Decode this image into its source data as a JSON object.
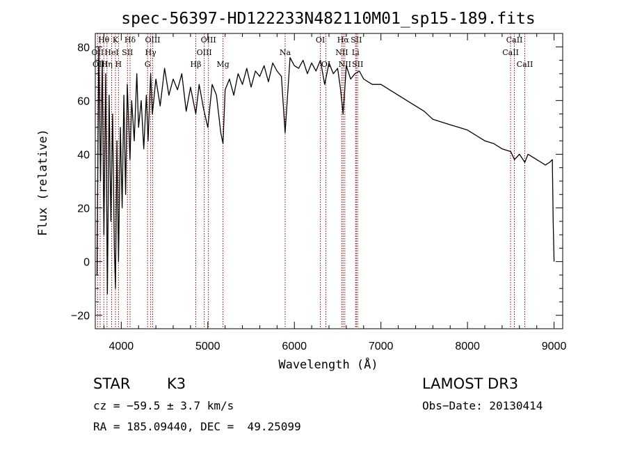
{
  "chart_data": {
    "type": "line",
    "title": "spec-56397-HD122233N482110M01_sp15-189.fits",
    "xlabel": "Wavelength (Å)",
    "ylabel": "Flux (relative)",
    "xlim": [
      3700,
      9100
    ],
    "ylim": [
      -25,
      85
    ],
    "xticks": [
      4000,
      5000,
      6000,
      7000,
      8000,
      9000
    ],
    "yticks": [
      -20,
      0,
      20,
      40,
      60,
      80
    ],
    "grid": false,
    "line_color": "#000000",
    "marker_color": "#8b0000",
    "series": [
      {
        "name": "flux",
        "x": [
          3720,
          3740,
          3760,
          3780,
          3800,
          3820,
          3840,
          3860,
          3880,
          3900,
          3920,
          3933,
          3950,
          3968,
          3990,
          4010,
          4030,
          4050,
          4070,
          4101,
          4120,
          4150,
          4180,
          4200,
          4230,
          4260,
          4290,
          4310,
          4340,
          4360,
          4400,
          4450,
          4500,
          4550,
          4600,
          4650,
          4700,
          4750,
          4800,
          4861,
          4900,
          4950,
          5000,
          5050,
          5100,
          5150,
          5175,
          5200,
          5250,
          5300,
          5350,
          5400,
          5450,
          5500,
          5550,
          5600,
          5650,
          5700,
          5750,
          5800,
          5850,
          5893,
          5950,
          6000,
          6050,
          6100,
          6150,
          6200,
          6250,
          6300,
          6350,
          6400,
          6450,
          6500,
          6530,
          6563,
          6600,
          6650,
          6700,
          6750,
          6800,
          6900,
          7000,
          7100,
          7200,
          7300,
          7400,
          7500,
          7600,
          7700,
          7800,
          7900,
          8000,
          8100,
          8200,
          8300,
          8400,
          8500,
          8542,
          8600,
          8662,
          8700,
          8750,
          8800,
          8850,
          8900,
          8950,
          8980,
          8990,
          9000
        ],
        "y": [
          -5,
          80,
          30,
          75,
          10,
          70,
          -12,
          62,
          15,
          55,
          5,
          -10,
          45,
          0,
          50,
          20,
          62,
          25,
          66,
          38,
          60,
          45,
          70,
          50,
          60,
          42,
          62,
          45,
          70,
          55,
          68,
          58,
          72,
          62,
          68,
          64,
          70,
          56,
          65,
          55,
          66,
          57,
          50,
          66,
          62,
          48,
          44,
          64,
          68,
          62,
          70,
          66,
          72,
          65,
          71,
          69,
          73,
          67,
          74,
          71,
          69,
          48,
          76,
          73,
          72,
          75,
          70,
          74,
          71,
          75,
          66,
          74,
          70,
          72,
          65,
          55,
          73,
          68,
          70,
          71,
          68,
          66,
          66,
          64,
          62,
          60,
          58,
          56,
          53,
          52,
          51,
          50,
          49,
          47,
          45,
          44,
          42,
          41,
          38,
          40,
          37,
          40,
          39,
          38,
          37,
          36,
          37,
          38,
          15,
          0
        ]
      }
    ],
    "line_markers": [
      {
        "label": "Hθ",
        "wavelength": 3798,
        "row": 0
      },
      {
        "label": "OII",
        "wavelength": 3727,
        "row": 1
      },
      {
        "label": "OIII",
        "wavelength": 3756,
        "row": 2
      },
      {
        "label": "K",
        "wavelength": 3933,
        "row": 0
      },
      {
        "label": "HeI",
        "wavelength": 3889,
        "row": 1
      },
      {
        "label": "Hη",
        "wavelength": 3835,
        "row": 2
      },
      {
        "label": "Hδ",
        "wavelength": 4102,
        "row": 0
      },
      {
        "label": "SII",
        "wavelength": 4072,
        "row": 1
      },
      {
        "label": "H",
        "wavelength": 3968,
        "row": 2
      },
      {
        "label": "OIII",
        "wavelength": 4363,
        "row": 0
      },
      {
        "label": "Hγ",
        "wavelength": 4340,
        "row": 1
      },
      {
        "label": "G",
        "wavelength": 4304,
        "row": 2
      },
      {
        "label": "OIII",
        "wavelength": 5007,
        "row": 0
      },
      {
        "label": "OIII",
        "wavelength": 4959,
        "row": 1
      },
      {
        "label": "Hβ",
        "wavelength": 4861,
        "row": 2
      },
      {
        "label": "Mg",
        "wavelength": 5175,
        "row": 2
      },
      {
        "label": "Na",
        "wavelength": 5893,
        "row": 1
      },
      {
        "label": "OI",
        "wavelength": 6300,
        "row": 0
      },
      {
        "label": "OI",
        "wavelength": 6364,
        "row": 2
      },
      {
        "label": "Hα",
        "wavelength": 6563,
        "row": 0
      },
      {
        "label": "NII",
        "wavelength": 6548,
        "row": 1
      },
      {
        "label": "NII",
        "wavelength": 6583,
        "row": 2
      },
      {
        "label": "SII",
        "wavelength": 6716,
        "row": 0
      },
      {
        "label": "Li",
        "wavelength": 6707,
        "row": 1
      },
      {
        "label": "SII",
        "wavelength": 6731,
        "row": 2
      },
      {
        "label": "CaII",
        "wavelength": 8542,
        "row": 0
      },
      {
        "label": "CaII",
        "wavelength": 8498,
        "row": 1
      },
      {
        "label": "CaII",
        "wavelength": 8662,
        "row": 2
      }
    ]
  },
  "info": {
    "class_label": "STAR",
    "subclass": "K3",
    "survey": "LAMOST DR3",
    "redshift": "cz = −59.5 ± 3.7 km/s",
    "obs_date": "Obs−Date: 20130414",
    "coords": "RA = 185.09440, DEC =  49.25099"
  }
}
